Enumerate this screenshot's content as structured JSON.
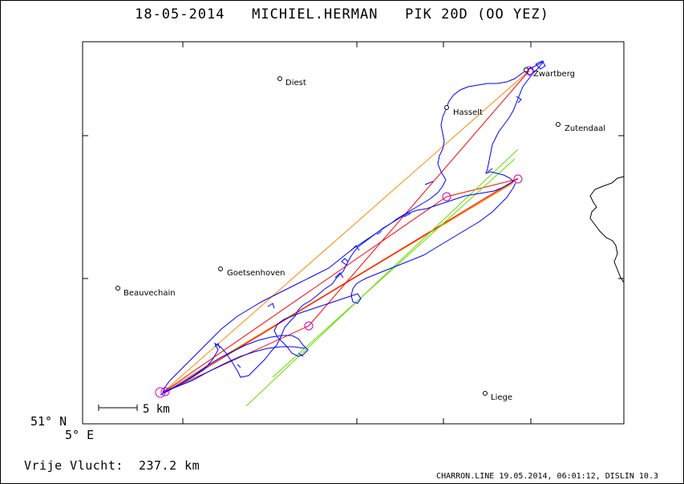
{
  "title": "18-05-2014   MICHIEL.HERMAN   PIK 20D (OO YEZ)",
  "axes": {
    "lat_label": "51° N",
    "lon_label": "5° E"
  },
  "scale_bar": {
    "label": "5 km"
  },
  "towns": [
    {
      "name": "Diest"
    },
    {
      "name": "Hasselt"
    },
    {
      "name": "Zwartberg"
    },
    {
      "name": "Zutendaal"
    },
    {
      "name": "Goetsenhoven"
    },
    {
      "name": "Beauvechain"
    },
    {
      "name": "Liege"
    }
  ],
  "distance": {
    "label": "Vrije Vlucht:",
    "value": "237.2 km"
  },
  "footer": "CHARRON.LINE 19.05.2014, 06:01:12, DISLIN 10.3",
  "colors": {
    "track": "#0000ff",
    "task_line_red": "#ff0000",
    "task_line_orange": "#ff8800",
    "task_line_green": "#66dd00",
    "turnpoint": "#cc00cc",
    "border": "#000000"
  }
}
